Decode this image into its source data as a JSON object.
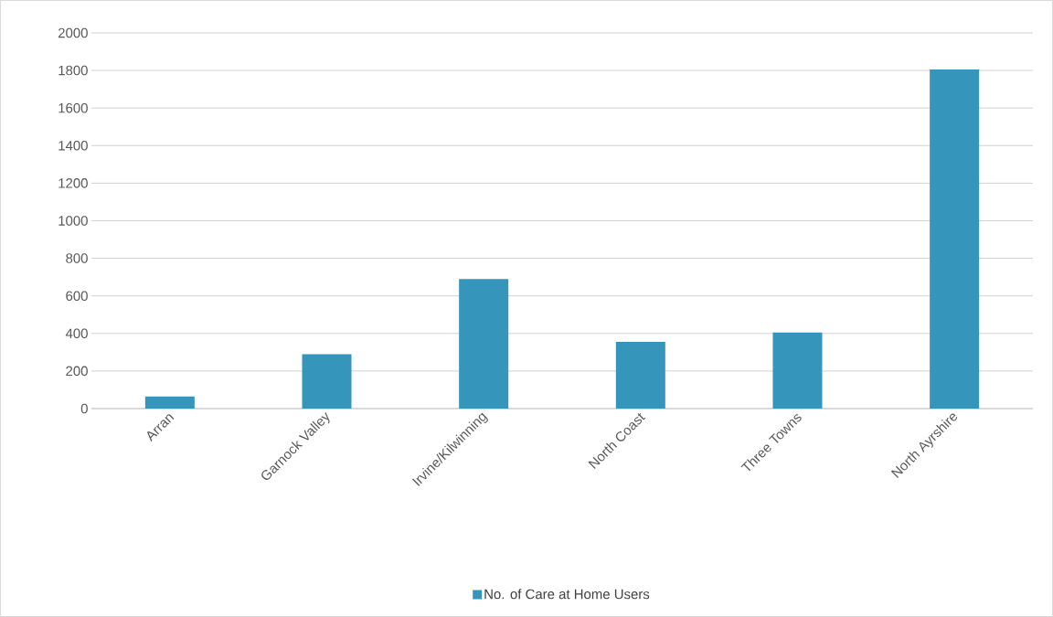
{
  "chart_data": {
    "type": "bar",
    "categories": [
      "Arran",
      "Garnock Valley",
      "Irvine/Kilwinning",
      "North Coast",
      "Three Towns",
      "North Ayrshire"
    ],
    "series": [
      {
        "name": "No. of Care at Home Users",
        "color": "#3595bb",
        "values": [
          65,
          290,
          690,
          355,
          405,
          1805
        ]
      }
    ],
    "ylim": [
      0,
      2000
    ],
    "yticks": [
      0,
      200,
      400,
      600,
      800,
      1000,
      1200,
      1400,
      1600,
      1800,
      2000
    ],
    "grid": "y",
    "legend": "bottom"
  }
}
